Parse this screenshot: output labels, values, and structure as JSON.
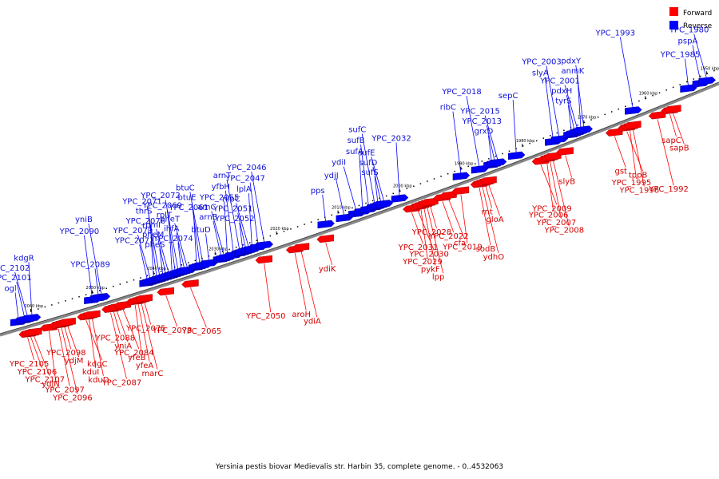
{
  "legend": {
    "forward": {
      "label": "Forward",
      "color": "#ff0000"
    },
    "reverse": {
      "label": "Reverse",
      "color": "#0000ff"
    }
  },
  "caption": "Yersinia pestis biovar Medievalis str. Harbin 35, complete genome. - 0..4532063",
  "scale": {
    "start_kbp": 2065,
    "end_kbp": 1948,
    "ticks": [
      "2060 kbp",
      "2050 kbp",
      "2040 kbp",
      "2030 kbp",
      "2020 kbp",
      "2010 kbp",
      "2000 kbp",
      "1990 kbp",
      "1980 kbp",
      "1970 kbp",
      "1960 kbp",
      "1950 kbp"
    ]
  },
  "genes": {
    "reverse": [
      {
        "name": "ogl",
        "pos": 2062
      },
      {
        "name": "YPC_2101",
        "pos": 2061
      },
      {
        "name": "YPC_2102",
        "pos": 2060.5
      },
      {
        "name": "kdgR",
        "pos": 2059.8
      },
      {
        "name": "YPC_2090",
        "pos": 2050
      },
      {
        "name": "yniB",
        "pos": 2048.5
      },
      {
        "name": "YPC_2089",
        "pos": 2049
      },
      {
        "name": "YPC_2077",
        "pos": 2041
      },
      {
        "name": "YPC_2079",
        "pos": 2040.5
      },
      {
        "name": "YPC_2076",
        "pos": 2040
      },
      {
        "name": "thrS",
        "pos": 2039.5
      },
      {
        "name": "YPC_2071",
        "pos": 2039
      },
      {
        "name": "pheS",
        "pos": 2038.5
      },
      {
        "name": "pheM",
        "pos": 2038
      },
      {
        "name": "rpmI",
        "pos": 2037.5
      },
      {
        "name": "rplT",
        "pos": 2037
      },
      {
        "name": "YPC_2069",
        "pos": 2036.5
      },
      {
        "name": "YPC_2072",
        "pos": 2036
      },
      {
        "name": "YPC_2074",
        "pos": 2035.5
      },
      {
        "name": "ihfA",
        "pos": 2035
      },
      {
        "name": "pheT",
        "pos": 2034.5
      },
      {
        "name": "YPC_2061",
        "pos": 2033
      },
      {
        "name": "btuE",
        "pos": 2032.5
      },
      {
        "name": "btuC",
        "pos": 2032
      },
      {
        "name": "btuD",
        "pos": 2031
      },
      {
        "name": "arnB",
        "pos": 2029
      },
      {
        "name": "arnC",
        "pos": 2028.5
      },
      {
        "name": "YPC_2055",
        "pos": 2028
      },
      {
        "name": "yfbH",
        "pos": 2027
      },
      {
        "name": "arnT",
        "pos": 2026
      },
      {
        "name": "YPC_2052",
        "pos": 2025.5
      },
      {
        "name": "YPC_2051",
        "pos": 2025
      },
      {
        "name": "nlpC",
        "pos": 2024.5
      },
      {
        "name": "lplA",
        "pos": 2024
      },
      {
        "name": "YPC_2047",
        "pos": 2023
      },
      {
        "name": "YPC_2046",
        "pos": 2022
      },
      {
        "name": "pps",
        "pos": 2012
      },
      {
        "name": "ydjJ",
        "pos": 2009
      },
      {
        "name": "ydiI",
        "pos": 2007
      },
      {
        "name": "sufA",
        "pos": 2006
      },
      {
        "name": "sufB",
        "pos": 2005
      },
      {
        "name": "sufC",
        "pos": 2004
      },
      {
        "name": "sufS",
        "pos": 2003.5
      },
      {
        "name": "sufD",
        "pos": 2003
      },
      {
        "name": "sufE",
        "pos": 2002.5
      },
      {
        "name": "YPC_2032",
        "pos": 2000
      },
      {
        "name": "ribC",
        "pos": 1990
      },
      {
        "name": "YPC_2018",
        "pos": 1987
      },
      {
        "name": "grxD",
        "pos": 1985
      },
      {
        "name": "YPC_2013",
        "pos": 1984.5
      },
      {
        "name": "YPC_2015",
        "pos": 1984
      },
      {
        "name": "sepC",
        "pos": 1981
      },
      {
        "name": "slyA",
        "pos": 1975
      },
      {
        "name": "YPC_2003",
        "pos": 1974
      },
      {
        "name": "tyrS",
        "pos": 1972
      },
      {
        "name": "pdxH",
        "pos": 1971.5
      },
      {
        "name": "YPC_2001",
        "pos": 1971
      },
      {
        "name": "anmK",
        "pos": 1970.5
      },
      {
        "name": "pdxY",
        "pos": 1970
      },
      {
        "name": "YPC_1993",
        "pos": 1962
      },
      {
        "name": "YPC_1985",
        "pos": 1953
      },
      {
        "name": "pspA",
        "pos": 1951
      },
      {
        "name": "YPC_1980",
        "pos": 1950
      }
    ],
    "forward": [
      {
        "name": "YPC_2105",
        "pos": 2060.5
      },
      {
        "name": "YPC_2106",
        "pos": 2060
      },
      {
        "name": "YPC_2107",
        "pos": 2059.5
      },
      {
        "name": "ydjN",
        "pos": 2057
      },
      {
        "name": "YPC_2097",
        "pos": 2055.5
      },
      {
        "name": "YPC_2096",
        "pos": 2055
      },
      {
        "name": "YPC_2098",
        "pos": 2054.5
      },
      {
        "name": "ydjM",
        "pos": 2054
      },
      {
        "name": "kdgC",
        "pos": 2051
      },
      {
        "name": "kduI",
        "pos": 2050.5
      },
      {
        "name": "kduD",
        "pos": 2050
      },
      {
        "name": "YPC_2087",
        "pos": 2047
      },
      {
        "name": "YPC_2088",
        "pos": 2046.5
      },
      {
        "name": "yniA",
        "pos": 2046
      },
      {
        "name": "YPC_2084",
        "pos": 2045
      },
      {
        "name": "yfeB",
        "pos": 2043
      },
      {
        "name": "yfeA",
        "pos": 2042.5
      },
      {
        "name": "marC",
        "pos": 2042
      },
      {
        "name": "YPC_2075",
        "pos": 2041.5
      },
      {
        "name": "YPC_2073",
        "pos": 2038
      },
      {
        "name": "YPC_2065",
        "pos": 2034
      },
      {
        "name": "YPC_2050",
        "pos": 2022
      },
      {
        "name": "aroH",
        "pos": 2017
      },
      {
        "name": "ydiA",
        "pos": 2016
      },
      {
        "name": "ydiK",
        "pos": 2012
      },
      {
        "name": "YPC_2031",
        "pos": 1998
      },
      {
        "name": "YPC_2030",
        "pos": 1997
      },
      {
        "name": "YPC_2029",
        "pos": 1996.5
      },
      {
        "name": "pykF",
        "pos": 1996
      },
      {
        "name": "lpp",
        "pos": 1995.5
      },
      {
        "name": "YPC_2028",
        "pos": 1995
      },
      {
        "name": "YPC_2022",
        "pos": 1993
      },
      {
        "name": "cfa",
        "pos": 1992
      },
      {
        "name": "YPC_2019",
        "pos": 1990
      },
      {
        "name": "sodB",
        "pos": 1987
      },
      {
        "name": "ydhO",
        "pos": 1986.5
      },
      {
        "name": "rnt",
        "pos": 1986
      },
      {
        "name": "gloA",
        "pos": 1985.5
      },
      {
        "name": "YPC_2009",
        "pos": 1977
      },
      {
        "name": "YPC_2006",
        "pos": 1976
      },
      {
        "name": "YPC_2007",
        "pos": 1975.5
      },
      {
        "name": "YPC_2008",
        "pos": 1975
      },
      {
        "name": "slyB",
        "pos": 1973
      },
      {
        "name": "gst",
        "pos": 1965
      },
      {
        "name": "tppB",
        "pos": 1963
      },
      {
        "name": "YPC_1995",
        "pos": 1962.5
      },
      {
        "name": "YPC_1996",
        "pos": 1962
      },
      {
        "name": "YPC_1992",
        "pos": 1958
      },
      {
        "name": "sapC",
        "pos": 1956
      },
      {
        "name": "sapB",
        "pos": 1955.5
      }
    ]
  }
}
